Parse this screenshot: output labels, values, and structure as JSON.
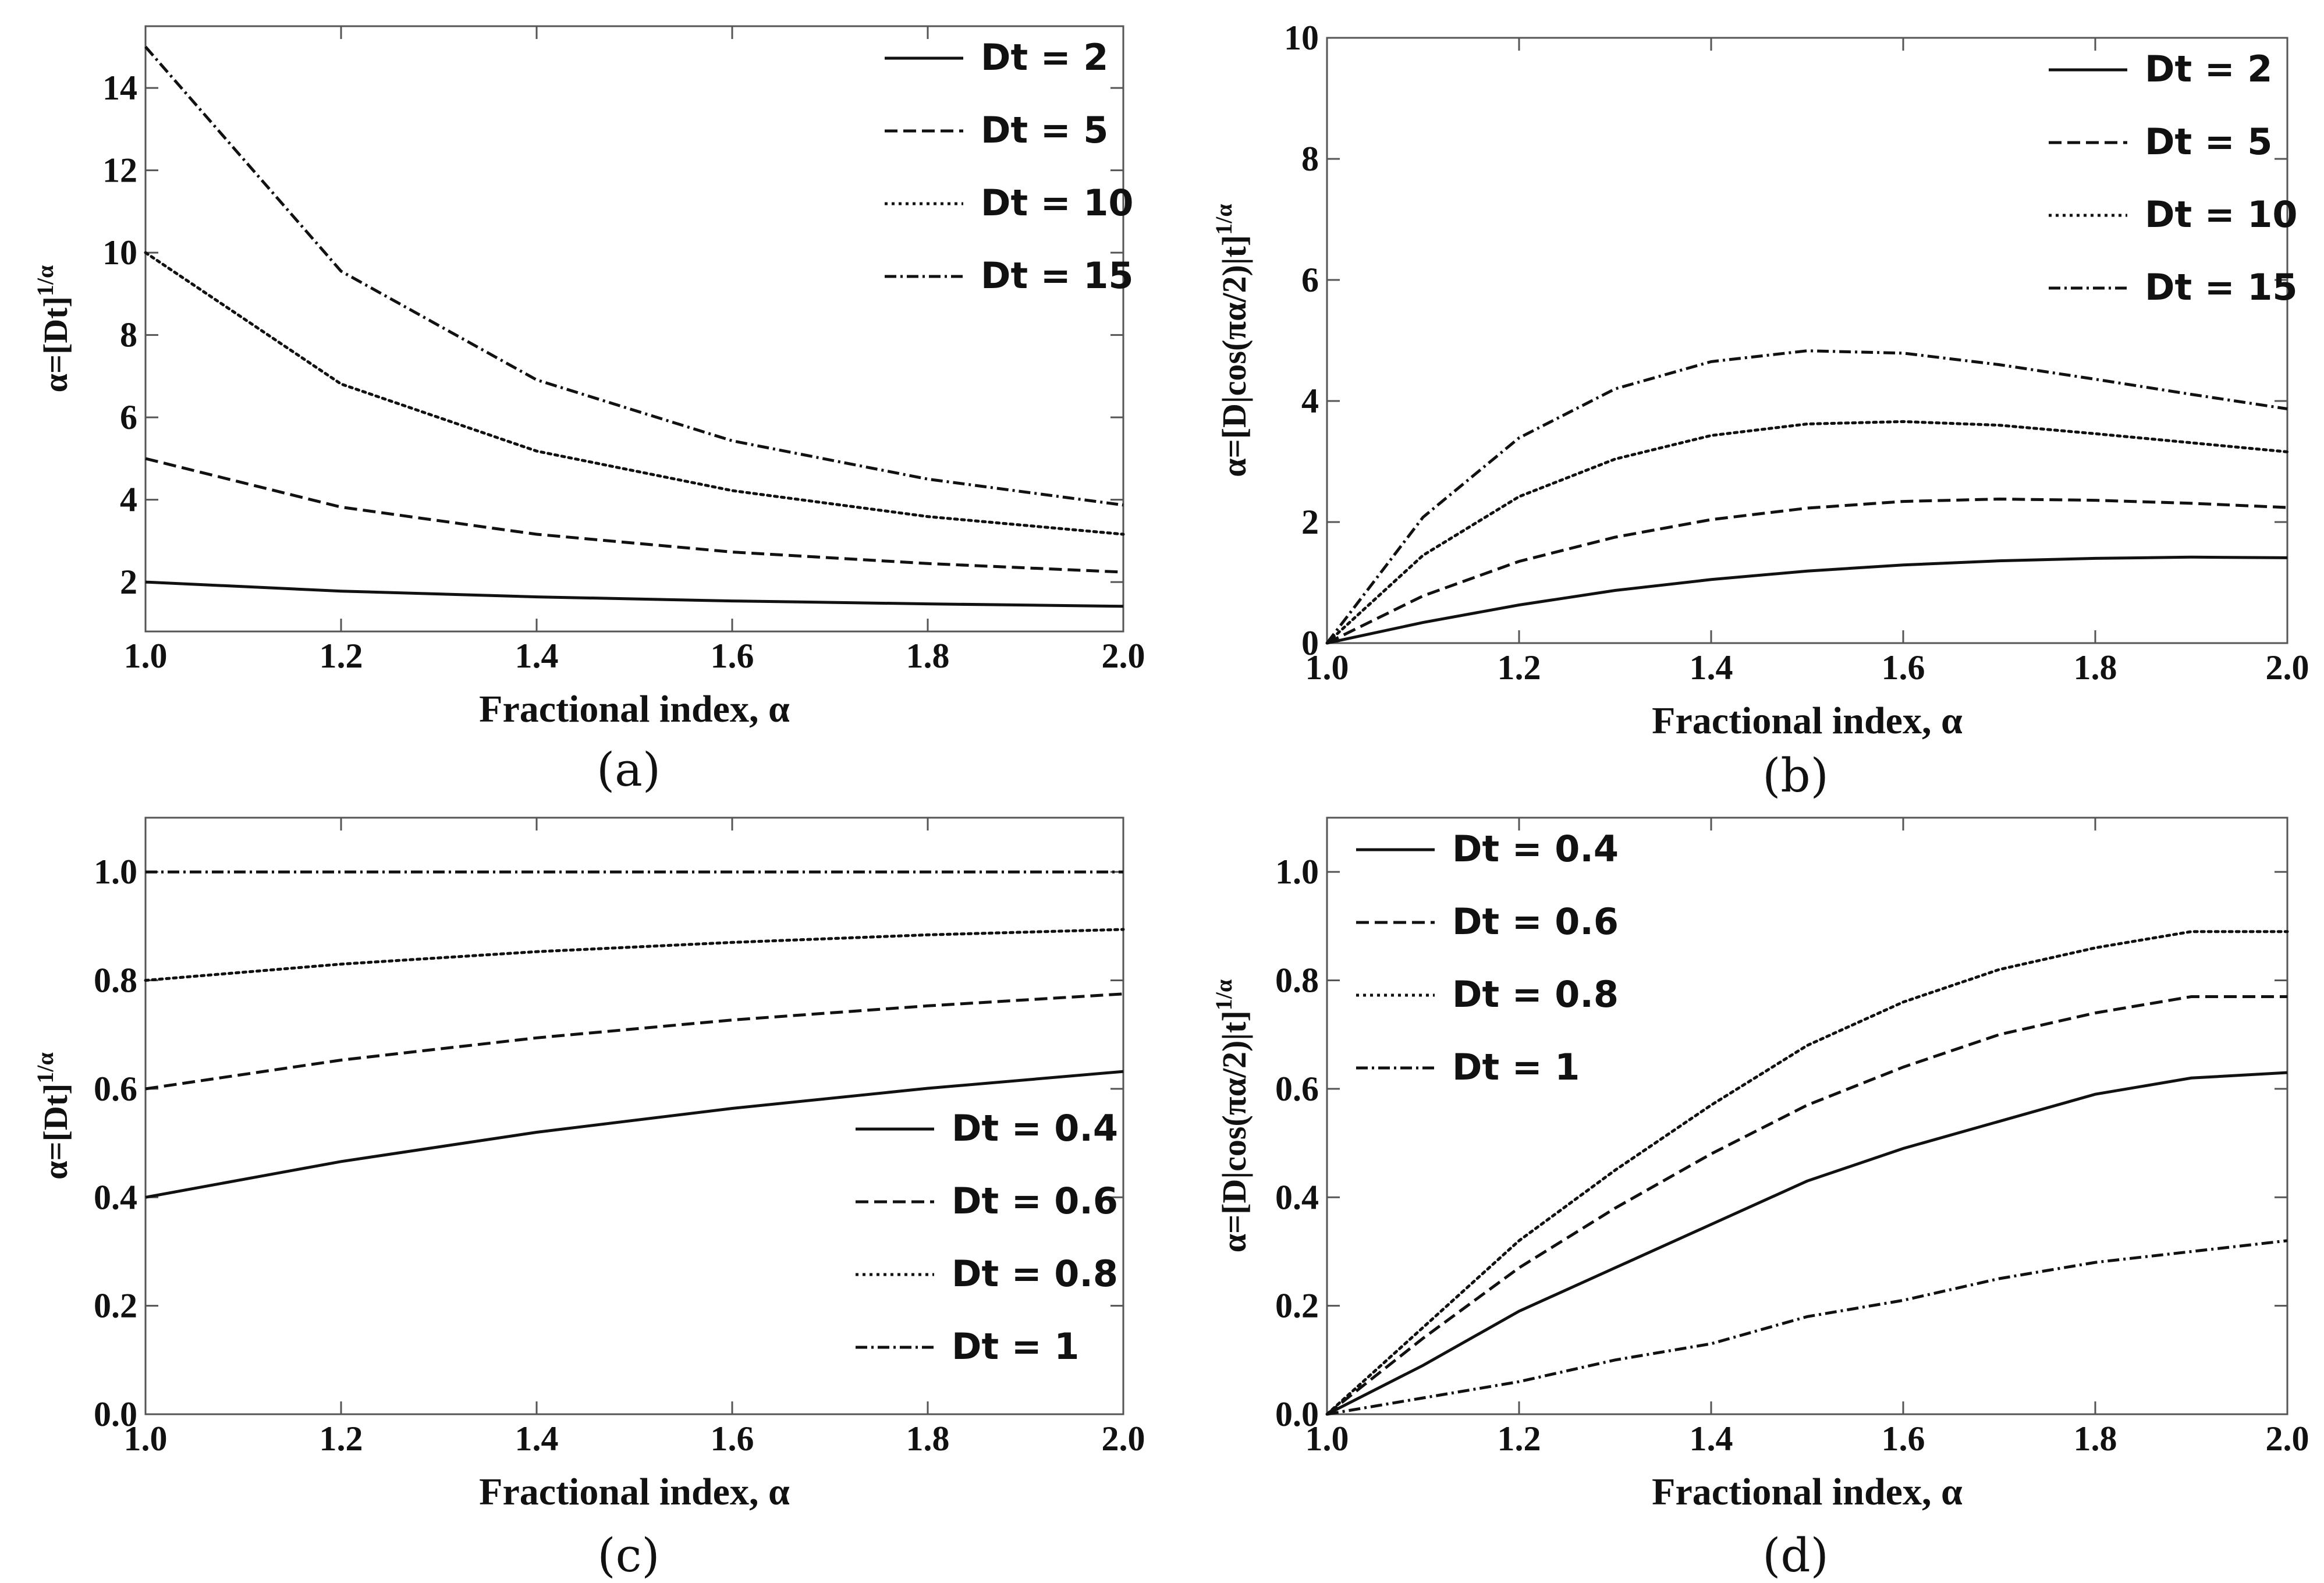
{
  "chart_data": [
    {
      "id": "a",
      "type": "line",
      "caption": "(a)",
      "xlabel": "Fractional index, α",
      "ylabel": "α=[Dt]^{1/α}",
      "ylabel_main": "α=[Dt]",
      "ylabel_sup": "1/α",
      "xlim": [
        1.0,
        2.0
      ],
      "ylim": [
        0.8,
        15.5
      ],
      "xticks": [
        "1.0",
        "1.2",
        "1.4",
        "1.6",
        "1.8",
        "2.0"
      ],
      "yticks": [
        "2",
        "4",
        "6",
        "8",
        "10",
        "12",
        "14"
      ],
      "legend_position": "top-right",
      "x": [
        1.0,
        1.2,
        1.4,
        1.6,
        1.8,
        2.0
      ],
      "series": [
        {
          "name": "Dt = 2",
          "style": "solid",
          "values": [
            2.0,
            1.78,
            1.64,
            1.54,
            1.47,
            1.41
          ]
        },
        {
          "name": "Dt = 5",
          "style": "dashed",
          "values": [
            5.0,
            3.82,
            3.16,
            2.73,
            2.45,
            2.24
          ]
        },
        {
          "name": "Dt = 10",
          "style": "dotted",
          "values": [
            10.0,
            6.81,
            5.18,
            4.22,
            3.59,
            3.16
          ]
        },
        {
          "name": "Dt = 15",
          "style": "dashdot",
          "values": [
            15.0,
            9.55,
            6.91,
            5.43,
            4.5,
            3.87
          ]
        }
      ]
    },
    {
      "id": "b",
      "type": "line",
      "caption": "(b)",
      "xlabel": "Fractional index, α",
      "ylabel": "α=[D|cos(πα/2)|t]^{1/α}",
      "ylabel_main": "α=[D|cos(πα/2)|t]",
      "ylabel_sup": "1/α",
      "xlim": [
        1.0,
        2.0
      ],
      "ylim": [
        0,
        10
      ],
      "xticks": [
        "1.0",
        "1.2",
        "1.4",
        "1.6",
        "1.8",
        "2.0"
      ],
      "yticks": [
        "0",
        "2",
        "4",
        "6",
        "8",
        "10"
      ],
      "legend_position": "top-right",
      "x": [
        1.0,
        1.1,
        1.2,
        1.3,
        1.4,
        1.5,
        1.6,
        1.7,
        1.8,
        1.9,
        2.0
      ],
      "series": [
        {
          "name": "Dt = 2",
          "style": "solid",
          "values": [
            0.0,
            0.34,
            0.63,
            0.87,
            1.05,
            1.19,
            1.29,
            1.36,
            1.4,
            1.42,
            1.41
          ]
        },
        {
          "name": "Dt = 5",
          "style": "dashed",
          "values": [
            0.0,
            0.78,
            1.35,
            1.75,
            2.04,
            2.23,
            2.34,
            2.38,
            2.36,
            2.31,
            2.24
          ]
        },
        {
          "name": "Dt = 10",
          "style": "dotted",
          "values": [
            0.0,
            1.45,
            2.42,
            3.04,
            3.43,
            3.62,
            3.66,
            3.6,
            3.46,
            3.31,
            3.16
          ]
        },
        {
          "name": "Dt = 15",
          "style": "dashdot",
          "values": [
            0.0,
            2.08,
            3.39,
            4.2,
            4.65,
            4.83,
            4.79,
            4.6,
            4.36,
            4.11,
            3.87
          ]
        }
      ]
    },
    {
      "id": "c",
      "type": "line",
      "caption": "(c)",
      "xlabel": "Fractional index, α",
      "ylabel": "α=[Dt]^{1/α}",
      "ylabel_main": "α=[Dt]",
      "ylabel_sup": "1/α",
      "xlim": [
        1.0,
        2.0
      ],
      "ylim": [
        0.0,
        1.1
      ],
      "xticks": [
        "1.0",
        "1.2",
        "1.4",
        "1.6",
        "1.8",
        "2.0"
      ],
      "yticks": [
        "0.0",
        "0.2",
        "0.4",
        "0.6",
        "0.8",
        "1.0"
      ],
      "legend_position": "bottom-right",
      "x": [
        1.0,
        1.2,
        1.4,
        1.6,
        1.8,
        2.0
      ],
      "series": [
        {
          "name": "Dt = 0.4",
          "style": "solid",
          "values": [
            0.4,
            0.466,
            0.52,
            0.564,
            0.601,
            0.632
          ]
        },
        {
          "name": "Dt = 0.6",
          "style": "dashed",
          "values": [
            0.6,
            0.653,
            0.694,
            0.727,
            0.753,
            0.775
          ]
        },
        {
          "name": "Dt = 0.8",
          "style": "dotted",
          "values": [
            0.8,
            0.83,
            0.853,
            0.87,
            0.884,
            0.894
          ]
        },
        {
          "name": "Dt = 1",
          "style": "dashdot",
          "values": [
            1.0,
            1.0,
            1.0,
            1.0,
            1.0,
            1.0
          ]
        }
      ]
    },
    {
      "id": "d",
      "type": "line",
      "caption": "(d)",
      "xlabel": "Fractional index, α",
      "ylabel": "α=[D|cos(πα/2)|t]^{1/α}",
      "ylabel_main": "α=[D|cos(πα/2)|t]",
      "ylabel_sup": "1/α",
      "xlim": [
        1.0,
        2.0
      ],
      "ylim": [
        0.0,
        1.1
      ],
      "xticks": [
        "1.0",
        "1.2",
        "1.4",
        "1.6",
        "1.8",
        "2.0"
      ],
      "yticks": [
        "0.0",
        "0.2",
        "0.4",
        "0.6",
        "0.8",
        "1.0"
      ],
      "legend_position": "top-left",
      "x": [
        1.0,
        1.1,
        1.2,
        1.3,
        1.4,
        1.5,
        1.6,
        1.7,
        1.8,
        1.9,
        2.0
      ],
      "series": [
        {
          "name": "Dt = 0.4",
          "style": "solid",
          "values": [
            0.0,
            0.09,
            0.19,
            0.27,
            0.35,
            0.43,
            0.49,
            0.54,
            0.59,
            0.62,
            0.63
          ]
        },
        {
          "name": "Dt = 0.6",
          "style": "dashed",
          "values": [
            0.0,
            0.14,
            0.27,
            0.38,
            0.48,
            0.57,
            0.64,
            0.7,
            0.74,
            0.77,
            0.77
          ]
        },
        {
          "name": "Dt = 0.8",
          "style": "dotted",
          "values": [
            0.0,
            0.16,
            0.32,
            0.45,
            0.57,
            0.68,
            0.76,
            0.82,
            0.86,
            0.89,
            0.89
          ]
        },
        {
          "name": "Dt = 1",
          "style": "dashdot",
          "values": [
            0.0,
            0.03,
            0.06,
            0.1,
            0.13,
            0.18,
            0.21,
            0.25,
            0.28,
            0.3,
            0.32
          ]
        }
      ]
    }
  ]
}
